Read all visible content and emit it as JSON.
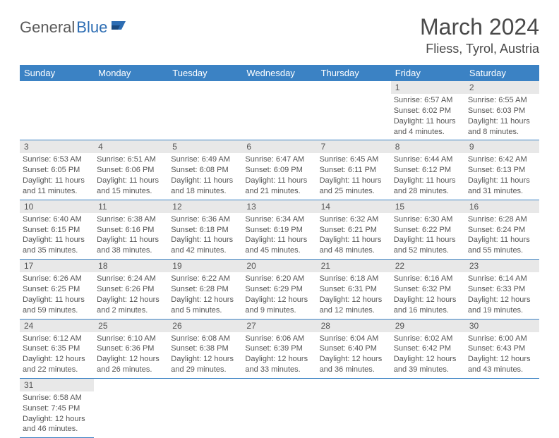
{
  "logo": {
    "text_gray": "General",
    "text_blue": "Blue"
  },
  "title": "March 2024",
  "location": "Fliess, Tyrol, Austria",
  "colors": {
    "header_bg": "#3b82c4",
    "header_text": "#ffffff",
    "daynum_bg": "#e8e8e8",
    "border": "#3b82c4",
    "text": "#555555",
    "logo_gray": "#5a5a5a",
    "logo_blue": "#2d6db3"
  },
  "fonts": {
    "title_size": 32,
    "location_size": 18,
    "header_size": 13,
    "daynum_size": 12,
    "info_size": 11
  },
  "day_headers": [
    "Sunday",
    "Monday",
    "Tuesday",
    "Wednesday",
    "Thursday",
    "Friday",
    "Saturday"
  ],
  "weeks": [
    [
      null,
      null,
      null,
      null,
      null,
      {
        "n": "1",
        "sr": "Sunrise: 6:57 AM",
        "ss": "Sunset: 6:02 PM",
        "dl1": "Daylight: 11 hours",
        "dl2": "and 4 minutes."
      },
      {
        "n": "2",
        "sr": "Sunrise: 6:55 AM",
        "ss": "Sunset: 6:03 PM",
        "dl1": "Daylight: 11 hours",
        "dl2": "and 8 minutes."
      }
    ],
    [
      {
        "n": "3",
        "sr": "Sunrise: 6:53 AM",
        "ss": "Sunset: 6:05 PM",
        "dl1": "Daylight: 11 hours",
        "dl2": "and 11 minutes."
      },
      {
        "n": "4",
        "sr": "Sunrise: 6:51 AM",
        "ss": "Sunset: 6:06 PM",
        "dl1": "Daylight: 11 hours",
        "dl2": "and 15 minutes."
      },
      {
        "n": "5",
        "sr": "Sunrise: 6:49 AM",
        "ss": "Sunset: 6:08 PM",
        "dl1": "Daylight: 11 hours",
        "dl2": "and 18 minutes."
      },
      {
        "n": "6",
        "sr": "Sunrise: 6:47 AM",
        "ss": "Sunset: 6:09 PM",
        "dl1": "Daylight: 11 hours",
        "dl2": "and 21 minutes."
      },
      {
        "n": "7",
        "sr": "Sunrise: 6:45 AM",
        "ss": "Sunset: 6:11 PM",
        "dl1": "Daylight: 11 hours",
        "dl2": "and 25 minutes."
      },
      {
        "n": "8",
        "sr": "Sunrise: 6:44 AM",
        "ss": "Sunset: 6:12 PM",
        "dl1": "Daylight: 11 hours",
        "dl2": "and 28 minutes."
      },
      {
        "n": "9",
        "sr": "Sunrise: 6:42 AM",
        "ss": "Sunset: 6:13 PM",
        "dl1": "Daylight: 11 hours",
        "dl2": "and 31 minutes."
      }
    ],
    [
      {
        "n": "10",
        "sr": "Sunrise: 6:40 AM",
        "ss": "Sunset: 6:15 PM",
        "dl1": "Daylight: 11 hours",
        "dl2": "and 35 minutes."
      },
      {
        "n": "11",
        "sr": "Sunrise: 6:38 AM",
        "ss": "Sunset: 6:16 PM",
        "dl1": "Daylight: 11 hours",
        "dl2": "and 38 minutes."
      },
      {
        "n": "12",
        "sr": "Sunrise: 6:36 AM",
        "ss": "Sunset: 6:18 PM",
        "dl1": "Daylight: 11 hours",
        "dl2": "and 42 minutes."
      },
      {
        "n": "13",
        "sr": "Sunrise: 6:34 AM",
        "ss": "Sunset: 6:19 PM",
        "dl1": "Daylight: 11 hours",
        "dl2": "and 45 minutes."
      },
      {
        "n": "14",
        "sr": "Sunrise: 6:32 AM",
        "ss": "Sunset: 6:21 PM",
        "dl1": "Daylight: 11 hours",
        "dl2": "and 48 minutes."
      },
      {
        "n": "15",
        "sr": "Sunrise: 6:30 AM",
        "ss": "Sunset: 6:22 PM",
        "dl1": "Daylight: 11 hours",
        "dl2": "and 52 minutes."
      },
      {
        "n": "16",
        "sr": "Sunrise: 6:28 AM",
        "ss": "Sunset: 6:24 PM",
        "dl1": "Daylight: 11 hours",
        "dl2": "and 55 minutes."
      }
    ],
    [
      {
        "n": "17",
        "sr": "Sunrise: 6:26 AM",
        "ss": "Sunset: 6:25 PM",
        "dl1": "Daylight: 11 hours",
        "dl2": "and 59 minutes."
      },
      {
        "n": "18",
        "sr": "Sunrise: 6:24 AM",
        "ss": "Sunset: 6:26 PM",
        "dl1": "Daylight: 12 hours",
        "dl2": "and 2 minutes."
      },
      {
        "n": "19",
        "sr": "Sunrise: 6:22 AM",
        "ss": "Sunset: 6:28 PM",
        "dl1": "Daylight: 12 hours",
        "dl2": "and 5 minutes."
      },
      {
        "n": "20",
        "sr": "Sunrise: 6:20 AM",
        "ss": "Sunset: 6:29 PM",
        "dl1": "Daylight: 12 hours",
        "dl2": "and 9 minutes."
      },
      {
        "n": "21",
        "sr": "Sunrise: 6:18 AM",
        "ss": "Sunset: 6:31 PM",
        "dl1": "Daylight: 12 hours",
        "dl2": "and 12 minutes."
      },
      {
        "n": "22",
        "sr": "Sunrise: 6:16 AM",
        "ss": "Sunset: 6:32 PM",
        "dl1": "Daylight: 12 hours",
        "dl2": "and 16 minutes."
      },
      {
        "n": "23",
        "sr": "Sunrise: 6:14 AM",
        "ss": "Sunset: 6:33 PM",
        "dl1": "Daylight: 12 hours",
        "dl2": "and 19 minutes."
      }
    ],
    [
      {
        "n": "24",
        "sr": "Sunrise: 6:12 AM",
        "ss": "Sunset: 6:35 PM",
        "dl1": "Daylight: 12 hours",
        "dl2": "and 22 minutes."
      },
      {
        "n": "25",
        "sr": "Sunrise: 6:10 AM",
        "ss": "Sunset: 6:36 PM",
        "dl1": "Daylight: 12 hours",
        "dl2": "and 26 minutes."
      },
      {
        "n": "26",
        "sr": "Sunrise: 6:08 AM",
        "ss": "Sunset: 6:38 PM",
        "dl1": "Daylight: 12 hours",
        "dl2": "and 29 minutes."
      },
      {
        "n": "27",
        "sr": "Sunrise: 6:06 AM",
        "ss": "Sunset: 6:39 PM",
        "dl1": "Daylight: 12 hours",
        "dl2": "and 33 minutes."
      },
      {
        "n": "28",
        "sr": "Sunrise: 6:04 AM",
        "ss": "Sunset: 6:40 PM",
        "dl1": "Daylight: 12 hours",
        "dl2": "and 36 minutes."
      },
      {
        "n": "29",
        "sr": "Sunrise: 6:02 AM",
        "ss": "Sunset: 6:42 PM",
        "dl1": "Daylight: 12 hours",
        "dl2": "and 39 minutes."
      },
      {
        "n": "30",
        "sr": "Sunrise: 6:00 AM",
        "ss": "Sunset: 6:43 PM",
        "dl1": "Daylight: 12 hours",
        "dl2": "and 43 minutes."
      }
    ],
    [
      {
        "n": "31",
        "sr": "Sunrise: 6:58 AM",
        "ss": "Sunset: 7:45 PM",
        "dl1": "Daylight: 12 hours",
        "dl2": "and 46 minutes."
      },
      null,
      null,
      null,
      null,
      null,
      null
    ]
  ]
}
